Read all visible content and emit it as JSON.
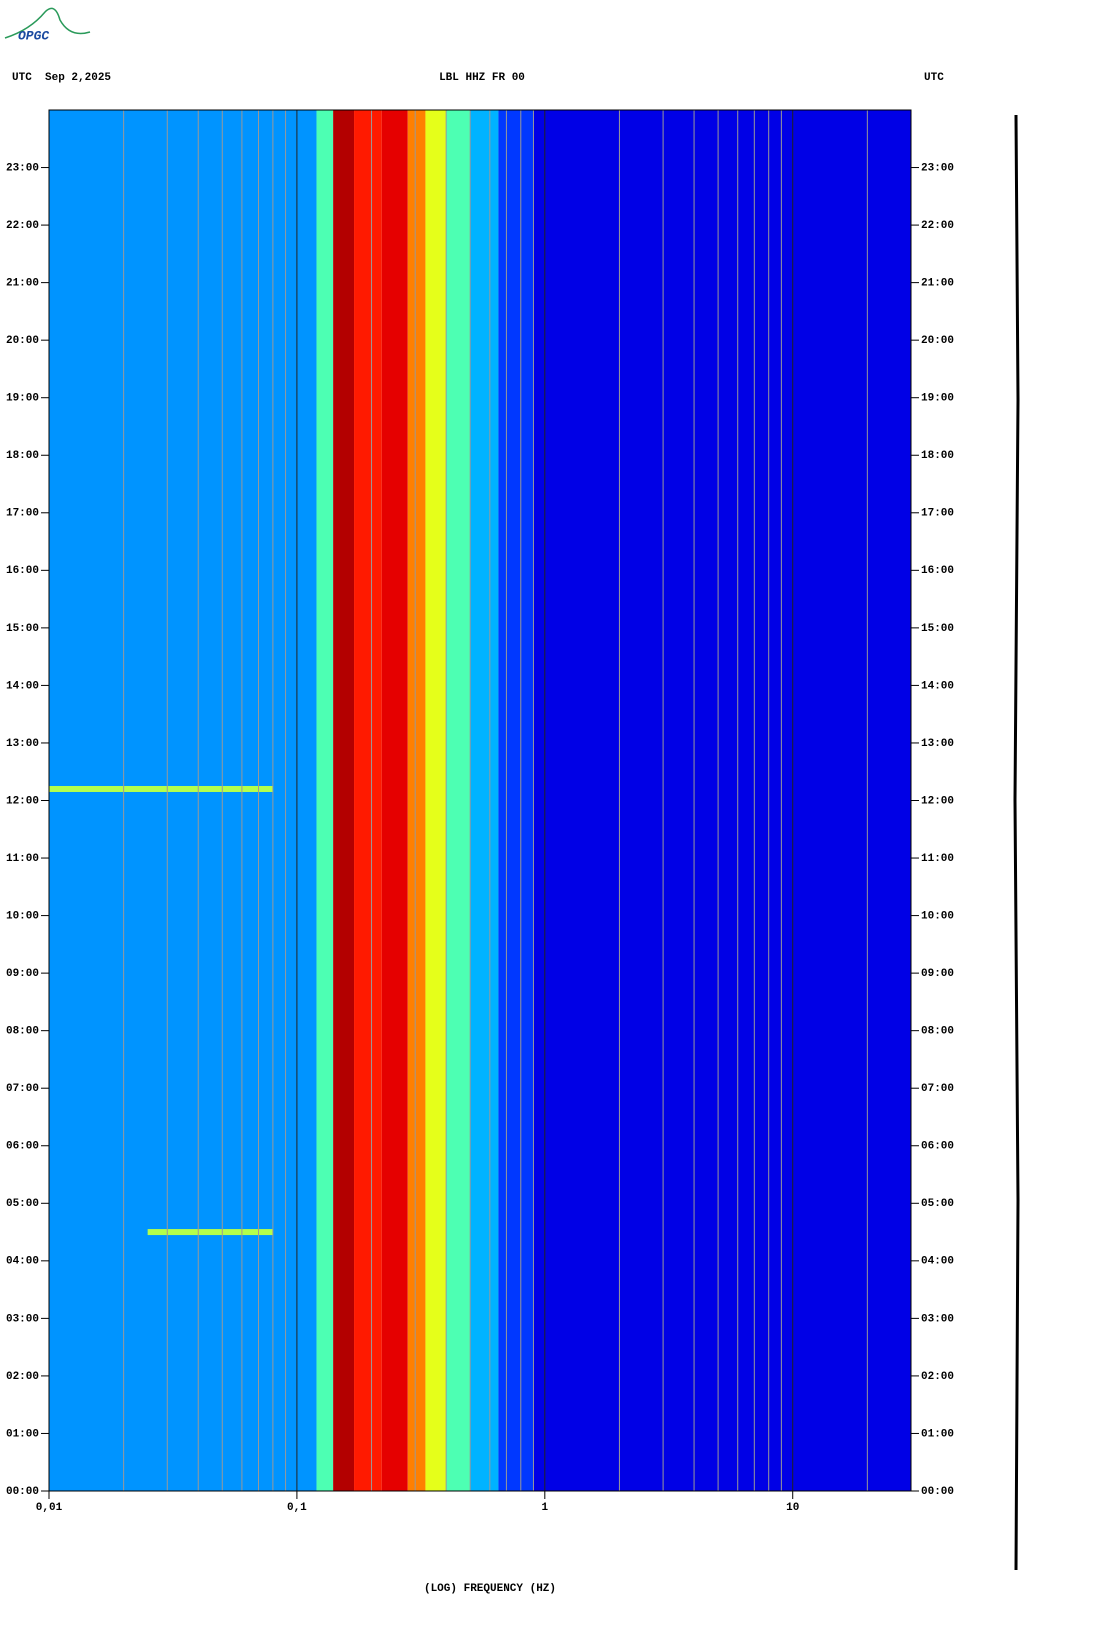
{
  "logo": "OPGC",
  "chart_data": {
    "type": "spectrogram",
    "title": "LBL HHZ FR 00",
    "left_label": "UTC  Sep 2,2025",
    "right_label": "UTC",
    "xlabel": "(LOG) FREQUENCY (HZ)",
    "xscale": "log",
    "xlim": [
      0.01,
      30
    ],
    "xticks": [
      {
        "value": 0.01,
        "label": "0,01"
      },
      {
        "value": 0.1,
        "label": "0,1"
      },
      1,
      10
    ],
    "xgrid": [
      0.02,
      0.03,
      0.04,
      0.05,
      0.06,
      0.07,
      0.08,
      0.09,
      0.2,
      0.3,
      0.4,
      0.5,
      0.6,
      0.7,
      0.8,
      0.9,
      2,
      3,
      4,
      5,
      6,
      7,
      8,
      9,
      20
    ],
    "ylim": [
      0,
      24
    ],
    "yticks": [
      {
        "value": 0,
        "label": "00:00"
      },
      {
        "value": 1,
        "label": "01:00"
      },
      {
        "value": 2,
        "label": "02:00"
      },
      {
        "value": 3,
        "label": "03:00"
      },
      {
        "value": 4,
        "label": "04:00"
      },
      {
        "value": 5,
        "label": "05:00"
      },
      {
        "value": 6,
        "label": "06:00"
      },
      {
        "value": 7,
        "label": "07:00"
      },
      {
        "value": 8,
        "label": "08:00"
      },
      {
        "value": 9,
        "label": "09:00"
      },
      {
        "value": 10,
        "label": "10:00"
      },
      {
        "value": 11,
        "label": "11:00"
      },
      {
        "value": 12,
        "label": "12:00"
      },
      {
        "value": 13,
        "label": "13:00"
      },
      {
        "value": 14,
        "label": "14:00"
      },
      {
        "value": 15,
        "label": "15:00"
      },
      {
        "value": 16,
        "label": "16:00"
      },
      {
        "value": 17,
        "label": "17:00"
      },
      {
        "value": 18,
        "label": "18:00"
      },
      {
        "value": 19,
        "label": "19:00"
      },
      {
        "value": 20,
        "label": "20:00"
      },
      {
        "value": 21,
        "label": "21:00"
      },
      {
        "value": 22,
        "label": "22:00"
      },
      {
        "value": 23,
        "label": "23:00"
      }
    ],
    "bins": [
      0.01,
      0.12,
      0.14,
      0.17,
      0.22,
      0.28,
      0.33,
      0.4,
      0.5,
      0.65,
      0.9,
      30
    ],
    "levels": [
      0.27,
      0.45,
      0.95,
      0.85,
      0.9,
      0.75,
      0.6,
      0.45,
      0.3,
      0.18,
      0.1
    ],
    "events": [
      {
        "time": 12.2,
        "fmin": 0.01,
        "fmax": 0.08,
        "level": 0.55
      },
      {
        "time": 4.5,
        "fmin": 0.025,
        "fmax": 0.08,
        "level": 0.55
      }
    ]
  }
}
